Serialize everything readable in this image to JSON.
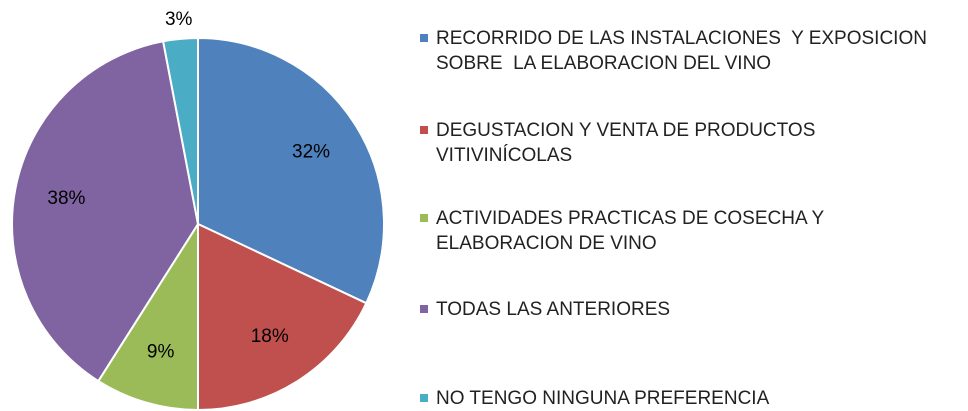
{
  "chart_data": {
    "type": "pie",
    "categories": [
      "RECORRIDO DE LAS INSTALACIONES  Y EXPOSICION SOBRE  LA ELABORACION DEL VINO",
      "DEGUSTACION Y VENTA DE PRODUCTOS VITIVINÍCOLAS",
      "ACTIVIDADES PRACTICAS DE COSECHA Y ELABORACION DE VINO",
      "TODAS LAS ANTERIORES",
      "NO TENGO NINGUNA PREFERENCIA"
    ],
    "values": [
      32,
      18,
      9,
      38,
      3
    ],
    "value_labels": [
      "32%",
      "18%",
      "9%",
      "38%",
      "3%"
    ],
    "colors": [
      "#4f81bd",
      "#c0504d",
      "#9bbb59",
      "#8064a2",
      "#4bacc6"
    ],
    "legend": "right"
  }
}
